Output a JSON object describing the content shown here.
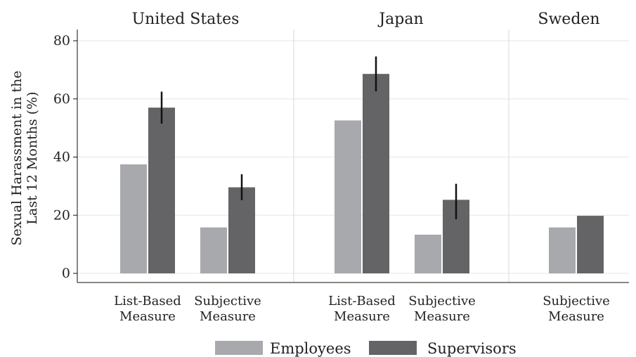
{
  "chart_data": {
    "type": "bar",
    "ylabel_lines": [
      "Sexual Harassment in the",
      "Last 12 Months (%)"
    ],
    "ylim": [
      0,
      80
    ],
    "yticks": [
      0,
      20,
      40,
      60,
      80
    ],
    "grid": true,
    "legend_position": "bottom",
    "series": [
      {
        "name": "Employees",
        "color": "#a8a9ad"
      },
      {
        "name": "Supervisors",
        "color": "#646466"
      }
    ],
    "panels": [
      {
        "title": "United States",
        "groups": [
          {
            "label_lines": [
              "List-Based",
              "Measure"
            ],
            "values": [
              37.5,
              57.0
            ],
            "error": [
              null,
              [
                51.5,
                62.5
              ]
            ]
          },
          {
            "label_lines": [
              "Subjective",
              "Measure"
            ],
            "values": [
              15.8,
              29.6
            ],
            "error": [
              null,
              [
                25.2,
                34.1
              ]
            ]
          }
        ]
      },
      {
        "title": "Japan",
        "groups": [
          {
            "label_lines": [
              "List-Based",
              "Measure"
            ],
            "values": [
              52.6,
              68.6
            ],
            "error": [
              null,
              [
                62.6,
                74.6
              ]
            ]
          },
          {
            "label_lines": [
              "Subjective",
              "Measure"
            ],
            "values": [
              13.3,
              25.3
            ],
            "error": [
              null,
              [
                18.6,
                30.8
              ]
            ]
          }
        ]
      },
      {
        "title": "Sweden",
        "groups": [
          {
            "label_lines": [
              "Subjective",
              "Measure"
            ],
            "values": [
              15.8,
              19.8
            ],
            "error": [
              null,
              null
            ]
          }
        ]
      }
    ]
  }
}
